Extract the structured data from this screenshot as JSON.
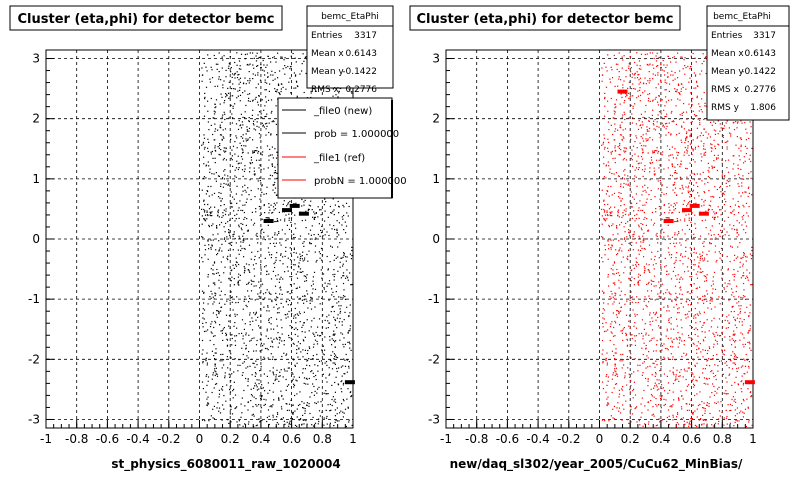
{
  "colors": {
    "background": "#ffffff",
    "file0": "#000000",
    "file1": "#ff0000",
    "grid": "#000000"
  },
  "chart_data": [
    {
      "type": "scatter",
      "title": "Cluster (eta,phi) for detector bemc",
      "xlabel": "st_physics_6080011_raw_1020004",
      "ylabel": "",
      "xlim": [
        -1,
        1
      ],
      "ylim": [
        -3.1416,
        3.1416
      ],
      "x_ticks": [
        "-1",
        "-0.8",
        "-0.6",
        "-0.4",
        "-0.2",
        "0",
        "0.2",
        "0.4",
        "0.6",
        "0.8",
        "1"
      ],
      "y_ticks": [
        "-3",
        "-2",
        "-1",
        "0",
        "1",
        "2",
        "3"
      ],
      "grid": true,
      "marker_color": "#000000",
      "stats": {
        "name": "bemc_EtaPhi",
        "rows": [
          {
            "label": "Entries",
            "value": "3317"
          },
          {
            "label": "Mean x",
            "value": "0.6143"
          },
          {
            "label": "Mean y",
            "value": "-0.1422"
          },
          {
            "label": "RMS x",
            "value": "0.2776"
          }
        ]
      },
      "legend": {
        "position": "top-right",
        "entries": [
          {
            "label": "_file0 (new)",
            "color": "#000000"
          },
          {
            "label": "prob = 1.000000",
            "color": "#000000"
          },
          {
            "label": "_file1 (ref)",
            "color": "#ff0000"
          },
          {
            "label": "probN = 1.000000",
            "color": "#ff0000"
          }
        ]
      },
      "hotspots": [
        {
          "x": 0.45,
          "y": 0.3,
          "label": "cluster"
        },
        {
          "x": 0.57,
          "y": 0.48,
          "label": "cluster"
        },
        {
          "x": 0.62,
          "y": 0.55,
          "label": "cluster"
        },
        {
          "x": 0.68,
          "y": 0.42,
          "label": "cluster"
        },
        {
          "x": 0.98,
          "y": -2.38,
          "label": "cluster"
        }
      ],
      "density_note": "points populate eta 0 to 1 across full phi range"
    },
    {
      "type": "scatter",
      "title": "Cluster (eta,phi) for detector bemc",
      "xlabel": "new/daq_sl302/year_2005/CuCu62_MinBias/",
      "ylabel": "",
      "xlim": [
        -1,
        1
      ],
      "ylim": [
        -3.1416,
        3.1416
      ],
      "x_ticks": [
        "-1",
        "-0.8",
        "-0.6",
        "-0.4",
        "-0.2",
        "0",
        "0.2",
        "0.4",
        "0.6",
        "0.8",
        "1"
      ],
      "y_ticks": [
        "-3",
        "-2",
        "-1",
        "0",
        "1",
        "2",
        "3"
      ],
      "grid": true,
      "marker_color": "#ff0000",
      "stats": {
        "name": "bemc_EtaPhi",
        "rows": [
          {
            "label": "Entries",
            "value": "3317"
          },
          {
            "label": "Mean x",
            "value": "0.6143"
          },
          {
            "label": "Mean y",
            "value": "-0.1422"
          },
          {
            "label": "RMS x",
            "value": "0.2776"
          },
          {
            "label": "RMS y",
            "value": "1.806"
          }
        ]
      },
      "hotspots": [
        {
          "x": 0.45,
          "y": 0.3,
          "label": "cluster"
        },
        {
          "x": 0.57,
          "y": 0.48,
          "label": "cluster"
        },
        {
          "x": 0.62,
          "y": 0.55,
          "label": "cluster"
        },
        {
          "x": 0.68,
          "y": 0.42,
          "label": "cluster"
        },
        {
          "x": 0.98,
          "y": -2.38,
          "label": "cluster"
        },
        {
          "x": 0.15,
          "y": 2.45,
          "label": "cluster"
        }
      ]
    }
  ]
}
